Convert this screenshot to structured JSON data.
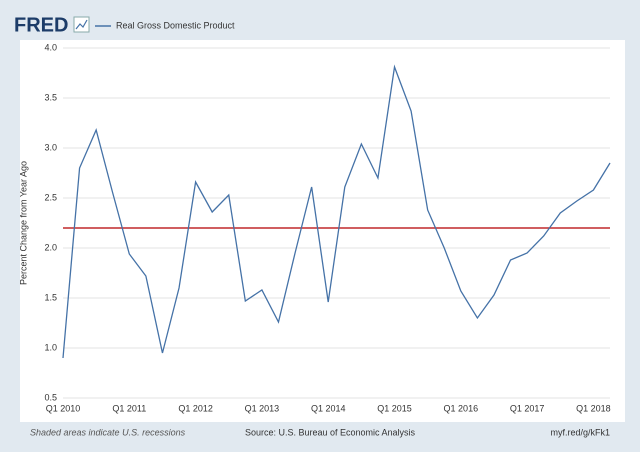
{
  "chart_data": {
    "type": "line",
    "logo": "FRED",
    "y_label": "Percent Change from Year Ago",
    "categories": [
      "Q1 2010",
      null,
      null,
      null,
      "Q1 2011",
      null,
      null,
      null,
      "Q1 2012",
      null,
      null,
      null,
      "Q1 2013",
      null,
      null,
      null,
      "Q1 2014",
      null,
      null,
      null,
      "Q1 2015",
      null,
      null,
      null,
      "Q1 2016",
      null,
      null,
      null,
      "Q1 2017",
      null,
      null,
      null,
      "Q1 2018",
      null
    ],
    "series": [
      {
        "name": "Real Gross Domestic Product",
        "color": "#4572a7",
        "values": [
          0.9,
          2.8,
          3.18,
          2.55,
          1.94,
          1.72,
          0.95,
          1.6,
          2.66,
          2.36,
          2.53,
          1.47,
          1.58,
          1.26,
          1.95,
          2.61,
          1.46,
          2.61,
          3.04,
          2.7,
          3.81,
          3.37,
          2.38,
          2.0,
          1.57,
          1.3,
          1.53,
          1.88,
          1.95,
          2.12,
          2.35,
          2.47,
          2.58,
          2.85
        ]
      }
    ],
    "reference_line": {
      "value": 2.2,
      "color": "#c0282b"
    },
    "ylim": [
      0.5,
      4.0
    ],
    "yticks": [
      {
        "value": 0.5,
        "label": "0.5"
      },
      {
        "value": 1,
        "label": "1.0"
      },
      {
        "value": 1.5,
        "label": "1.5"
      },
      {
        "value": 2,
        "label": "2.0"
      },
      {
        "value": 2.5,
        "label": "2.5"
      },
      {
        "value": 3,
        "label": "3.0"
      },
      {
        "value": 3.5,
        "label": "3.5"
      },
      {
        "value": 4,
        "label": "4.0"
      }
    ],
    "grid": true,
    "footer": {
      "left": "Shaded areas indicate U.S. recessions",
      "center": "Source: U.S. Bureau of Economic Analysis",
      "right": "myf.red/g/kFk1"
    }
  }
}
